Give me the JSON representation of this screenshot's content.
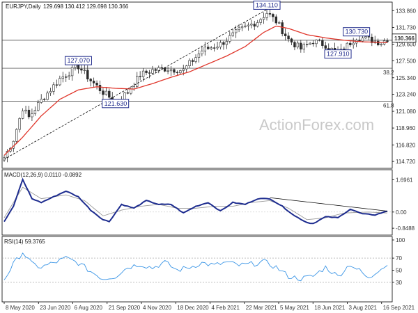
{
  "chart_data": {
    "type": "candlestick",
    "header": {
      "symbol": "EURJPY,Daily",
      "quote": "129.698 130.412 129.698 130.366"
    },
    "watermark": "ActionForex.com",
    "price_ticks": [
      "133.860",
      "131.730",
      "129.600",
      "127.500",
      "125.340",
      "123.240",
      "121.080",
      "118.960",
      "116.820",
      "114.720"
    ],
    "current_price": "130.366",
    "x_labels": [
      "8 May 2020",
      "23 Jun 2020",
      "6 Aug 2020",
      "21 Sep 2020",
      "4 Nov 2020",
      "18 Dec 2020",
      "4 Feb 2021",
      "22 Mar 2021",
      "5 May 2021",
      "18 Jun 2021",
      "3 Aug 2021",
      "16 Sep 2021"
    ],
    "ylim": [
      114.2,
      134.5
    ],
    "horizontal_levels": [
      {
        "price": 130.1,
        "label": ""
      },
      {
        "price": 126.55,
        "label": "38.2"
      },
      {
        "price": 122.35,
        "label": "61.8"
      }
    ],
    "annotations": [
      {
        "text": "134.110",
        "date_index": 85
      },
      {
        "text": "127.070",
        "date_index": 24
      },
      {
        "text": "121.630",
        "date_index": 36
      },
      {
        "text": "130.730",
        "date_index": 114
      },
      {
        "text": "127.910",
        "date_index": 108
      }
    ],
    "trendline": {
      "from": {
        "date_index": 0,
        "price": 115.0
      },
      "to": {
        "date_index": 85,
        "price": 134.0
      }
    },
    "close_anchors": [
      [
        0,
        115.2
      ],
      [
        3,
        117.5
      ],
      [
        6,
        121.5
      ],
      [
        8,
        120.3
      ],
      [
        12,
        122.5
      ],
      [
        18,
        125.2
      ],
      [
        24,
        126.8
      ],
      [
        28,
        125.0
      ],
      [
        32,
        123.5
      ],
      [
        36,
        122.3
      ],
      [
        40,
        123.5
      ],
      [
        44,
        125.7
      ],
      [
        48,
        126.3
      ],
      [
        52,
        126.5
      ],
      [
        58,
        126.3
      ],
      [
        64,
        128.8
      ],
      [
        70,
        129.6
      ],
      [
        76,
        131.3
      ],
      [
        82,
        132.5
      ],
      [
        85,
        133.6
      ],
      [
        88,
        132.5
      ],
      [
        92,
        130.2
      ],
      [
        96,
        129.0
      ],
      [
        100,
        130.0
      ],
      [
        104,
        129.5
      ],
      [
        108,
        128.3
      ],
      [
        112,
        129.8
      ],
      [
        114,
        130.5
      ],
      [
        118,
        130.2
      ],
      [
        122,
        129.8
      ],
      [
        124,
        130.3
      ]
    ],
    "ma_anchors": [
      [
        0,
        115.5
      ],
      [
        6,
        117.8
      ],
      [
        12,
        120.5
      ],
      [
        18,
        122.6
      ],
      [
        24,
        123.8
      ],
      [
        30,
        124.2
      ],
      [
        36,
        124.0
      ],
      [
        42,
        123.9
      ],
      [
        48,
        124.6
      ],
      [
        54,
        125.4
      ],
      [
        60,
        126.1
      ],
      [
        66,
        127.1
      ],
      [
        72,
        128.1
      ],
      [
        78,
        129.3
      ],
      [
        84,
        131.1
      ],
      [
        88,
        131.9
      ],
      [
        92,
        131.6
      ],
      [
        98,
        130.8
      ],
      [
        104,
        130.4
      ],
      [
        110,
        130.1
      ],
      [
        116,
        129.9
      ],
      [
        124,
        129.8
      ]
    ],
    "macd": {
      "label": "MACD(12,26,9) 0.0110 -0.0892",
      "ticks": [
        "1.6961",
        "0.00",
        "-0.8488"
      ],
      "ylim": [
        -1.1,
        2.0
      ],
      "anchors": [
        [
          0,
          -0.5
        ],
        [
          3,
          0.3
        ],
        [
          6,
          1.7
        ],
        [
          9,
          0.7
        ],
        [
          12,
          0.5
        ],
        [
          16,
          0.8
        ],
        [
          20,
          1.1
        ],
        [
          24,
          0.8
        ],
        [
          28,
          0.1
        ],
        [
          32,
          -0.4
        ],
        [
          34,
          -0.5
        ],
        [
          38,
          0.4
        ],
        [
          42,
          0.2
        ],
        [
          46,
          0.6
        ],
        [
          50,
          0.4
        ],
        [
          54,
          0.4
        ],
        [
          58,
          -0.05
        ],
        [
          62,
          0.3
        ],
        [
          66,
          0.5
        ],
        [
          70,
          0.05
        ],
        [
          74,
          0.5
        ],
        [
          78,
          0.4
        ],
        [
          82,
          0.7
        ],
        [
          86,
          0.7
        ],
        [
          90,
          0.3
        ],
        [
          94,
          -0.2
        ],
        [
          98,
          -0.55
        ],
        [
          100,
          -0.6
        ],
        [
          104,
          -0.25
        ],
        [
          108,
          -0.3
        ],
        [
          112,
          0.15
        ],
        [
          116,
          -0.1
        ],
        [
          120,
          -0.15
        ],
        [
          124,
          0.05
        ]
      ],
      "signal_anchors": [
        [
          0,
          -0.3
        ],
        [
          6,
          1.3
        ],
        [
          12,
          0.7
        ],
        [
          20,
          0.9
        ],
        [
          26,
          0.6
        ],
        [
          32,
          -0.2
        ],
        [
          38,
          0.1
        ],
        [
          44,
          0.3
        ],
        [
          50,
          0.4
        ],
        [
          56,
          0.2
        ],
        [
          62,
          0.2
        ],
        [
          68,
          0.3
        ],
        [
          74,
          0.3
        ],
        [
          80,
          0.5
        ],
        [
          86,
          0.6
        ],
        [
          92,
          0.2
        ],
        [
          98,
          -0.4
        ],
        [
          104,
          -0.3
        ],
        [
          110,
          -0.05
        ],
        [
          118,
          0.0
        ],
        [
          124,
          -0.05
        ]
      ],
      "trendline": {
        "from": {
          "date_index": 86,
          "value": 0.75
        },
        "to": {
          "date_index": 124,
          "value": 0.05
        }
      }
    },
    "rsi": {
      "label": "RSI(14) 59.3765",
      "ticks": [
        "100",
        "70",
        "50",
        "30",
        "0"
      ],
      "ylim": [
        0,
        100
      ],
      "anchors": [
        [
          0,
          35
        ],
        [
          3,
          60
        ],
        [
          6,
          80
        ],
        [
          9,
          60
        ],
        [
          12,
          55
        ],
        [
          16,
          62
        ],
        [
          20,
          70
        ],
        [
          24,
          62
        ],
        [
          28,
          48
        ],
        [
          32,
          36
        ],
        [
          36,
          40
        ],
        [
          40,
          55
        ],
        [
          44,
          60
        ],
        [
          48,
          54
        ],
        [
          52,
          63
        ],
        [
          56,
          50
        ],
        [
          60,
          55
        ],
        [
          64,
          62
        ],
        [
          68,
          58
        ],
        [
          72,
          63
        ],
        [
          76,
          58
        ],
        [
          80,
          60
        ],
        [
          84,
          64
        ],
        [
          88,
          55
        ],
        [
          92,
          40
        ],
        [
          96,
          36
        ],
        [
          100,
          40
        ],
        [
          104,
          55
        ],
        [
          108,
          40
        ],
        [
          112,
          60
        ],
        [
          116,
          45
        ],
        [
          118,
          35
        ],
        [
          122,
          55
        ],
        [
          124,
          59
        ]
      ]
    }
  }
}
